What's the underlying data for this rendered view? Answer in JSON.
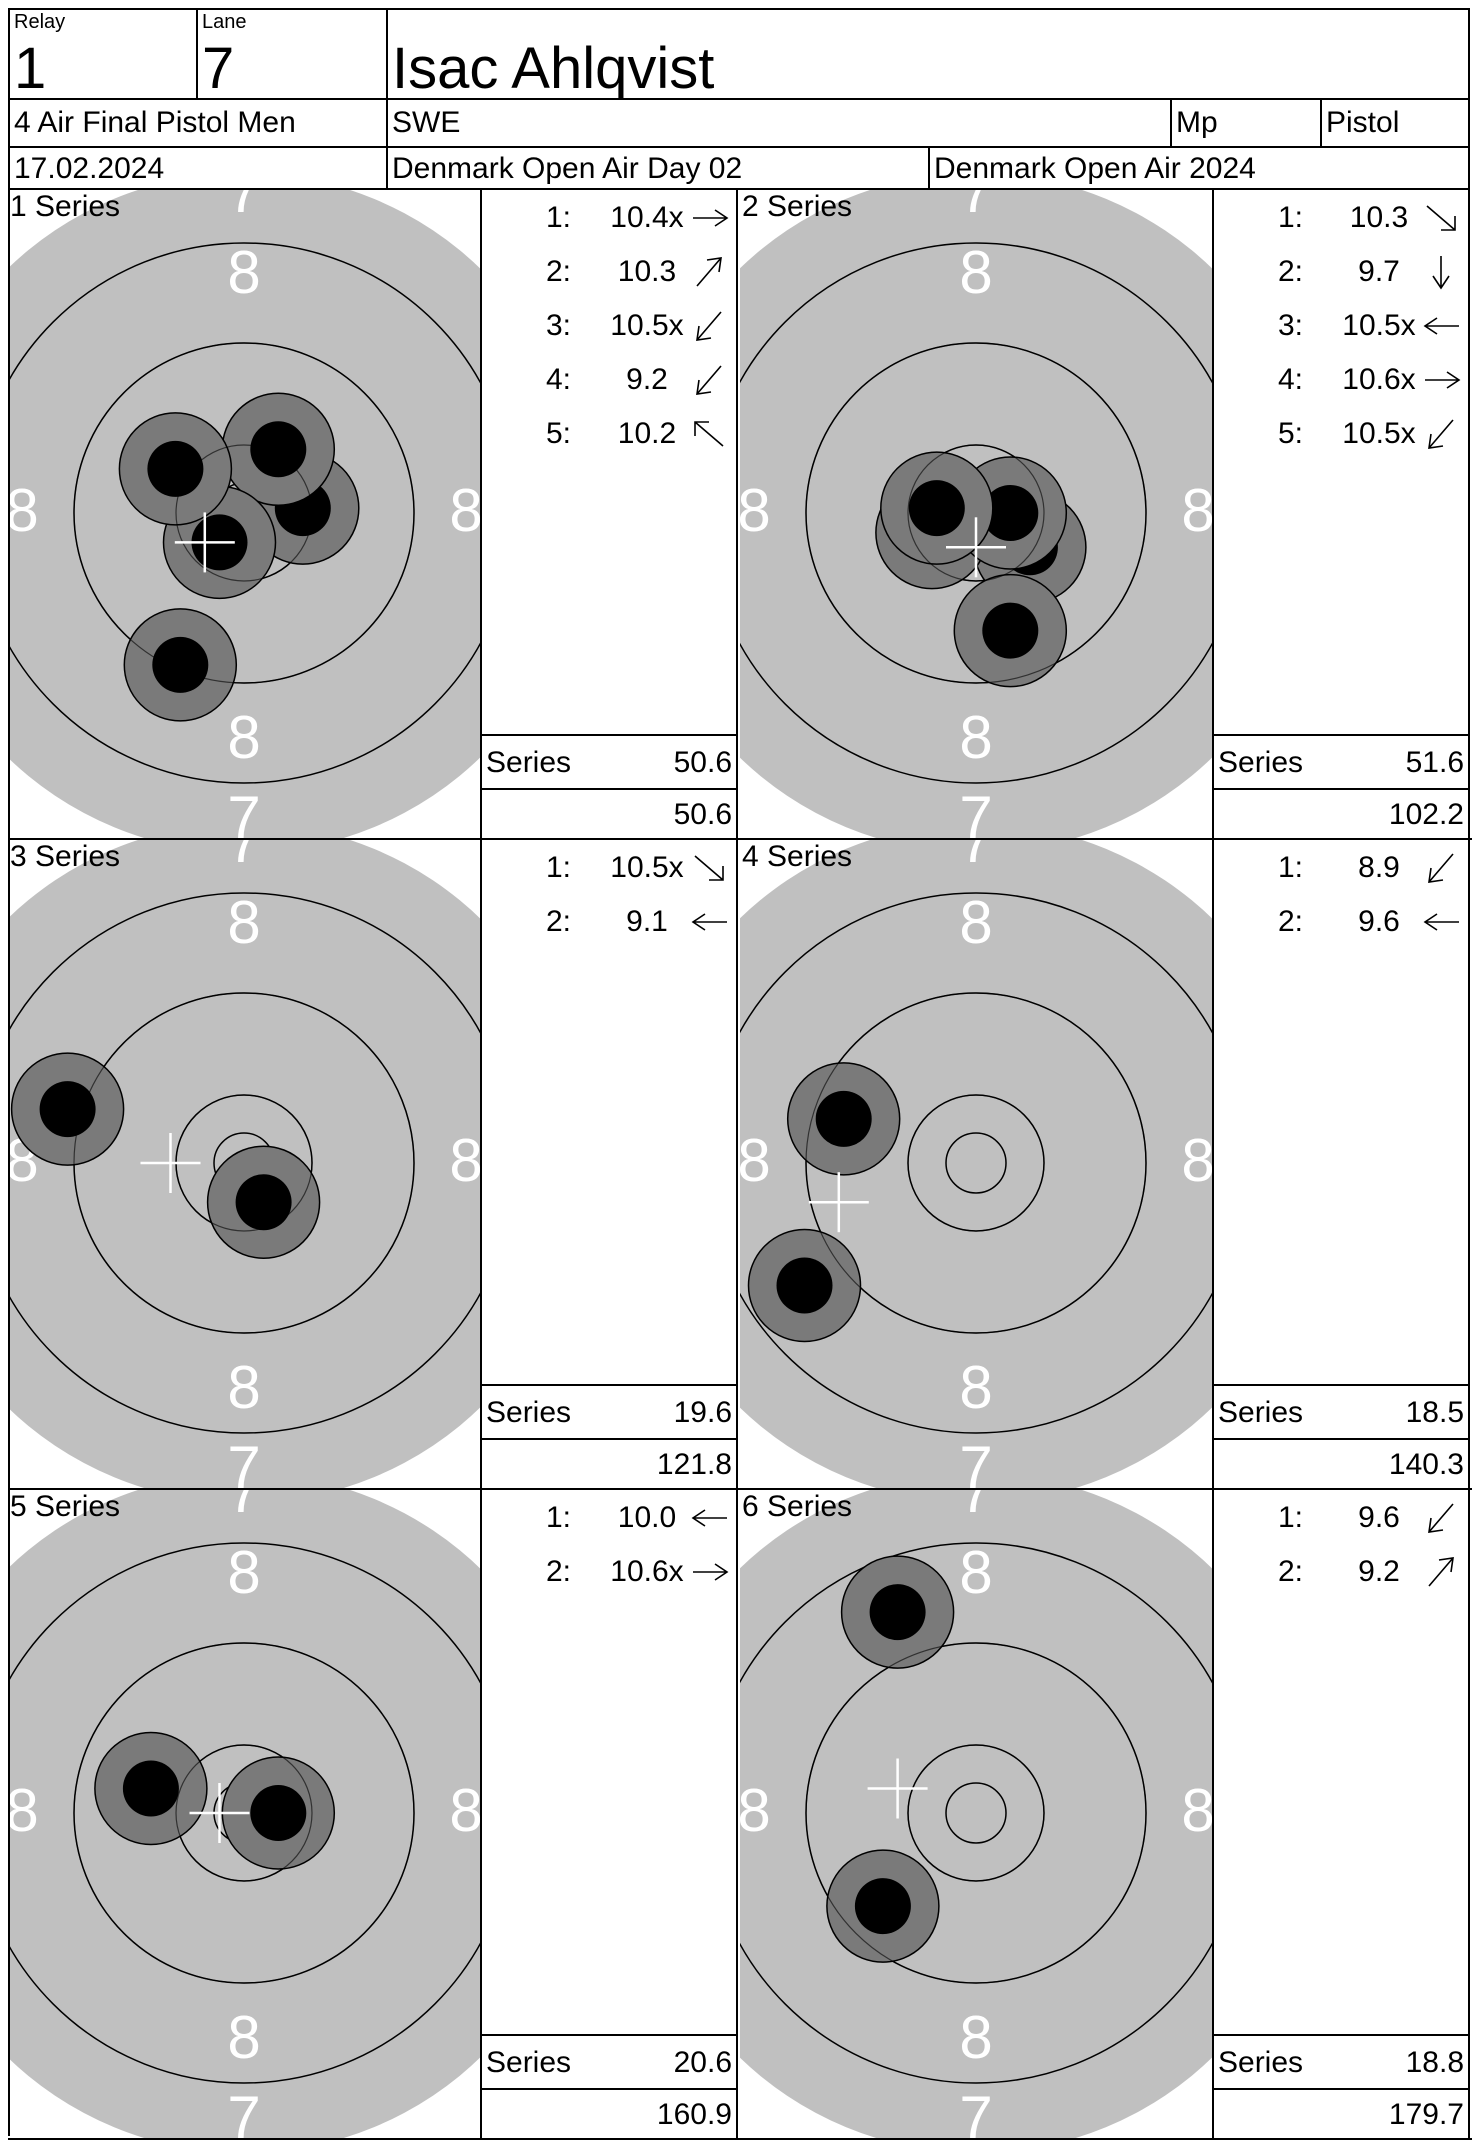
{
  "header": {
    "relay_label": "Relay",
    "relay_value": "1",
    "lane_label": "Lane",
    "lane_value": "7",
    "athlete_name": "Isac Ahlqvist",
    "event": "4 Air Final Pistol Men",
    "nation": "SWE",
    "class": "Mp",
    "discipline": "Pistol",
    "date": "17.02.2024",
    "competition_day": "Denmark Open Air Day 02",
    "competition": "Denmark Open Air 2024"
  },
  "series_word": "Series",
  "ring_labels": {
    "inner": "8",
    "outer": "7"
  },
  "colors": {
    "target_face": "#c0c0c0",
    "shot_halo": "#7a7a7a",
    "shot_core": "#000000",
    "aim_cross": "#ffffff"
  },
  "series": [
    {
      "title": "1 Series",
      "series_total": "50.6",
      "running_total": "50.6",
      "center_circle": "small",
      "mean": {
        "x": -0.08,
        "y": -0.06
      },
      "shots": [
        {
          "no": "1:",
          "value": "10.4x",
          "arrow": "right",
          "x": 0.12,
          "y": 0.01
        },
        {
          "no": "2:",
          "value": "10.3",
          "arrow": "up-right",
          "x": 0.07,
          "y": 0.13
        },
        {
          "no": "3:",
          "value": "10.5x",
          "arrow": "down-left",
          "x": -0.05,
          "y": -0.06
        },
        {
          "no": "4:",
          "value": "9.2",
          "arrow": "down-left",
          "x": -0.13,
          "y": -0.31
        },
        {
          "no": "5:",
          "value": "10.2",
          "arrow": "up-left",
          "x": -0.14,
          "y": 0.09
        }
      ]
    },
    {
      "title": "2 Series",
      "series_total": "51.6",
      "running_total": "102.2",
      "center_circle": "small",
      "mean": {
        "x": 0.0,
        "y": -0.07
      },
      "shots": [
        {
          "no": "1:",
          "value": "10.3",
          "arrow": "down-right",
          "x": 0.11,
          "y": -0.07
        },
        {
          "no": "2:",
          "value": "9.7",
          "arrow": "down",
          "x": 0.07,
          "y": -0.24
        },
        {
          "no": "3:",
          "value": "10.5x",
          "arrow": "left",
          "x": -0.09,
          "y": -0.04
        },
        {
          "no": "4:",
          "value": "10.6x",
          "arrow": "right",
          "x": 0.07,
          "y": 0.0
        },
        {
          "no": "5:",
          "value": "10.5x",
          "arrow": "down-left",
          "x": -0.08,
          "y": 0.01
        }
      ]
    },
    {
      "title": "3 Series",
      "series_total": "19.6",
      "running_total": "121.8",
      "center_circle": "small",
      "mean": {
        "x": -0.15,
        "y": 0.0
      },
      "shots": [
        {
          "no": "1:",
          "value": "10.5x",
          "arrow": "down-right",
          "x": 0.04,
          "y": -0.08
        },
        {
          "no": "2:",
          "value": "9.1",
          "arrow": "left",
          "x": -0.36,
          "y": 0.11
        }
      ]
    },
    {
      "title": "4 Series",
      "series_total": "18.5",
      "running_total": "140.3",
      "center_circle": "none",
      "mean": {
        "x": -0.28,
        "y": -0.08
      },
      "shots": [
        {
          "no": "1:",
          "value": "8.9",
          "arrow": "down-left",
          "x": -0.35,
          "y": -0.25
        },
        {
          "no": "2:",
          "value": "9.6",
          "arrow": "left",
          "x": -0.27,
          "y": 0.09
        }
      ]
    },
    {
      "title": "5 Series",
      "series_total": "20.6",
      "running_total": "160.9",
      "center_circle": "small",
      "mean": {
        "x": -0.05,
        "y": 0.0
      },
      "shots": [
        {
          "no": "1:",
          "value": "10.0",
          "arrow": "left",
          "x": -0.19,
          "y": 0.05
        },
        {
          "no": "2:",
          "value": "10.6x",
          "arrow": "right",
          "x": 0.07,
          "y": 0.0
        }
      ]
    },
    {
      "title": "6 Series",
      "series_total": "18.8",
      "running_total": "179.7",
      "center_circle": "none",
      "mean": {
        "x": -0.16,
        "y": 0.05
      },
      "shots": [
        {
          "no": "1:",
          "value": "9.6",
          "arrow": "down-left",
          "x": -0.19,
          "y": -0.19
        },
        {
          "no": "2:",
          "value": "9.2",
          "arrow": "up-right",
          "x": -0.16,
          "y": 0.41
        }
      ]
    }
  ]
}
